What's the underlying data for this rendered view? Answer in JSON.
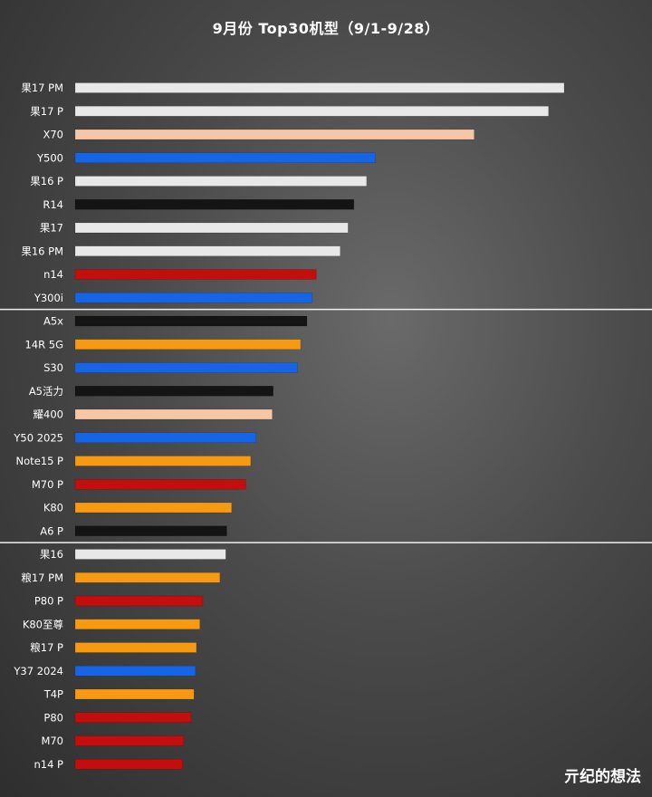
{
  "title": "9月份 Top30机型（9/1-9/28）",
  "watermark": "亓纪的想法",
  "chart_data": {
    "type": "bar",
    "orientation": "horizontal",
    "title": "9月份 Top30机型（9/1-9/28）",
    "xlabel": "",
    "ylabel": "",
    "grid": false,
    "legend": "none",
    "group_separators_after": [
      10,
      20
    ],
    "categories": [
      "果17 PM",
      "果17 P",
      "X70",
      "Y500",
      "果16 P",
      "R14",
      "果17",
      "果16 PM",
      "n14",
      "Y300i",
      "A5x",
      "14R 5G",
      "S30",
      "A5活力",
      "耀400",
      "Y50 2025",
      "Note15 P",
      "M70 P",
      "K80",
      "A6 P",
      "果16",
      "粮17 PM",
      "P80 P",
      "K80至尊",
      "粮17 P",
      "Y37 2024",
      "T4P",
      "P80",
      "M70",
      "n14 P"
    ],
    "values": [
      100,
      96.8,
      81.6,
      61.4,
      59.6,
      57.0,
      55.8,
      54.2,
      49.3,
      48.5,
      47.4,
      46.1,
      45.5,
      40.5,
      40.3,
      37.0,
      35.9,
      34.9,
      32.0,
      31.0,
      30.8,
      29.6,
      26.1,
      25.5,
      24.8,
      24.6,
      24.3,
      23.7,
      22.2,
      22.0
    ],
    "colors": [
      "#e8e8e8",
      "#e8e8e8",
      "#f7c6a6",
      "#1565e6",
      "#e8e8e8",
      "#141414",
      "#e8e8e8",
      "#e8e8e8",
      "#c40d0d",
      "#1565e6",
      "#141414",
      "#f79a12",
      "#1565e6",
      "#141414",
      "#f7c6a6",
      "#1565e6",
      "#f79a12",
      "#c40d0d",
      "#f79a12",
      "#141414",
      "#e8e8e8",
      "#f79a12",
      "#c40d0d",
      "#f79a12",
      "#f79a12",
      "#1565e6",
      "#f79a12",
      "#c40d0d",
      "#c40d0d",
      "#c40d0d"
    ]
  }
}
